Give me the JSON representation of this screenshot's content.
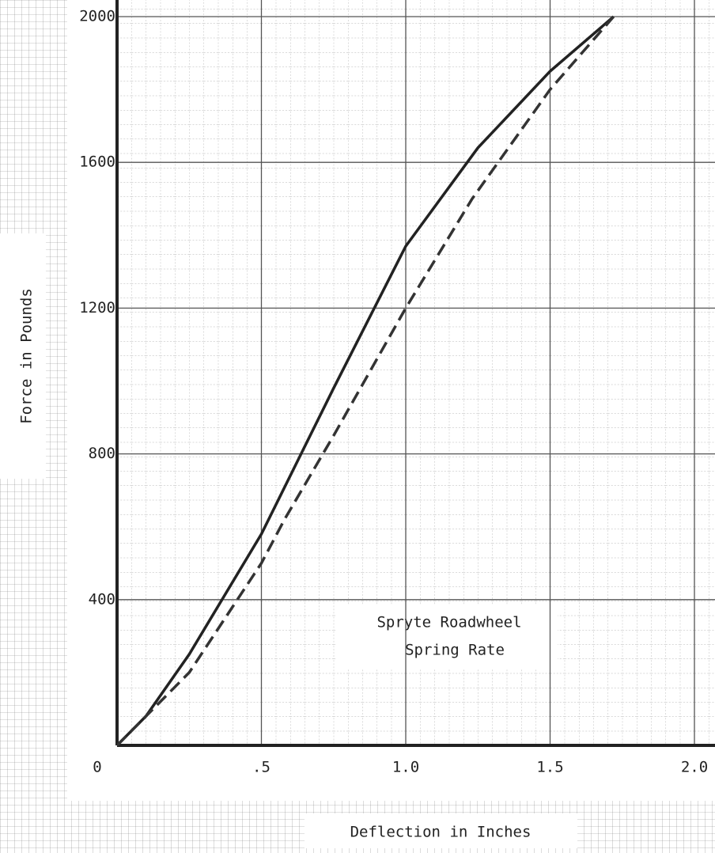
{
  "chart_data": {
    "type": "line",
    "annotation": [
      "Spryte Roadwheel",
      "Spring Rate"
    ],
    "xlabel": "Deflection in Inches",
    "ylabel": "Force in Pounds",
    "xlim": [
      0,
      2.0
    ],
    "ylim": [
      0,
      2000
    ],
    "xticks": [
      0,
      {
        "value": 0.5,
        "label": ".5"
      },
      {
        "value": 1.0,
        "label": "1.0"
      },
      {
        "value": 1.5,
        "label": "1.5"
      },
      {
        "value": 2.0,
        "label": "2.0"
      }
    ],
    "yticks": [
      400,
      800,
      1200,
      1600,
      2000
    ],
    "grid": true,
    "series": [
      {
        "color": "#222",
        "style": "solid",
        "x": [
          0,
          0.1,
          0.25,
          0.5,
          0.75,
          1.0,
          1.25,
          1.5,
          1.72
        ],
        "values": [
          0,
          80,
          250,
          580,
          980,
          1370,
          1640,
          1850,
          2000
        ]
      },
      {
        "color": "#333",
        "style": "dashed",
        "x": [
          0,
          0.25,
          0.5,
          0.58,
          0.75,
          1.0,
          1.23,
          1.5,
          1.72
        ],
        "values": [
          0,
          200,
          500,
          620,
          850,
          1200,
          1500,
          1800,
          2000
        ]
      }
    ]
  }
}
